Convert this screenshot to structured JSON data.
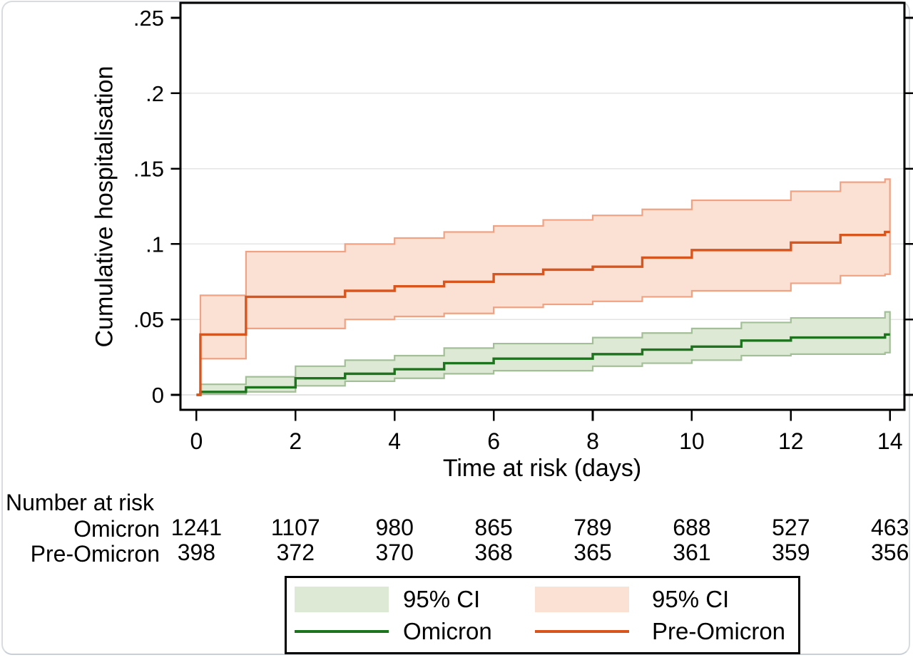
{
  "chart_data": {
    "type": "line",
    "subtype": "kaplan-meier-cumulative-incidence-step-plot",
    "title": "",
    "xlabel": "Time at risk (days)",
    "ylabel": "Cumulative hospitalisation",
    "xlim": [
      0,
      14
    ],
    "ylim": [
      0,
      0.25
    ],
    "grid": "horizontal-only",
    "x_ticks": {
      "values": [
        0,
        2,
        4,
        6,
        8,
        10,
        12,
        14
      ],
      "labels": [
        "0",
        "2",
        "4",
        "6",
        "8",
        "10",
        "12",
        "14"
      ]
    },
    "y_ticks": {
      "values": [
        0,
        0.05,
        0.1,
        0.15,
        0.2,
        0.25
      ],
      "labels": [
        "0",
        ".05",
        ".1",
        ".15",
        ".2",
        ".25"
      ]
    },
    "gridlines_y": [
      0,
      0.05,
      0.1,
      0.15,
      0.2
    ],
    "steps_format": "[day, estimate, ci_lower, ci_upper]",
    "series": [
      {
        "name": "Omicron",
        "line_color": "#1e741e",
        "ci_fill": "#dde9d4",
        "ci_edge": "#a2bf97",
        "end_x": 14,
        "steps": [
          [
            0,
            0,
            0,
            0
          ],
          [
            0.08,
            0.002,
            0.0005,
            0.007
          ],
          [
            1,
            0.005,
            0.002,
            0.012
          ],
          [
            2,
            0.011,
            0.006,
            0.019
          ],
          [
            3,
            0.014,
            0.009,
            0.023
          ],
          [
            4,
            0.017,
            0.011,
            0.026
          ],
          [
            5,
            0.021,
            0.014,
            0.031
          ],
          [
            6,
            0.024,
            0.016,
            0.034
          ],
          [
            8,
            0.027,
            0.019,
            0.038
          ],
          [
            9,
            0.03,
            0.021,
            0.041
          ],
          [
            10,
            0.032,
            0.023,
            0.044
          ],
          [
            11,
            0.036,
            0.026,
            0.048
          ],
          [
            12,
            0.038,
            0.027,
            0.051
          ],
          [
            13.9,
            0.04,
            0.028,
            0.055
          ]
        ]
      },
      {
        "name": "Pre-Omicron",
        "line_color": "#d8551e",
        "ci_fill": "#fbe0d4",
        "ci_edge": "#f0a283",
        "end_x": 14,
        "steps": [
          [
            0,
            0,
            0,
            0
          ],
          [
            0.08,
            0.04,
            0.024,
            0.066
          ],
          [
            1,
            0.065,
            0.044,
            0.095
          ],
          [
            3,
            0.069,
            0.05,
            0.1
          ],
          [
            4,
            0.072,
            0.052,
            0.104
          ],
          [
            5,
            0.075,
            0.054,
            0.108
          ],
          [
            6,
            0.08,
            0.058,
            0.112
          ],
          [
            7,
            0.083,
            0.06,
            0.116
          ],
          [
            8,
            0.085,
            0.062,
            0.119
          ],
          [
            9,
            0.091,
            0.065,
            0.123
          ],
          [
            10,
            0.096,
            0.069,
            0.129
          ],
          [
            12,
            0.101,
            0.074,
            0.135
          ],
          [
            13,
            0.106,
            0.079,
            0.141
          ],
          [
            13.9,
            0.108,
            0.08,
            0.143
          ]
        ]
      }
    ],
    "number_at_risk": {
      "header": "Number at risk",
      "time_points": [
        0,
        2,
        4,
        6,
        8,
        10,
        12,
        14
      ],
      "rows": [
        {
          "label": "Omicron",
          "counts": [
            "1241",
            "1107",
            "980",
            "865",
            "789",
            "688",
            "527",
            "463"
          ]
        },
        {
          "label": "Pre-Omicron",
          "counts": [
            "398",
            "372",
            "370",
            "368",
            "365",
            "361",
            "359",
            "356"
          ]
        }
      ]
    },
    "legend": {
      "position": "bottom-center",
      "items": [
        {
          "type": "fill",
          "color": "#dde9d4",
          "label": "95% CI"
        },
        {
          "type": "fill",
          "color": "#fbe0d4",
          "label": "95% CI"
        },
        {
          "type": "line",
          "color": "#1e741e",
          "label": "Omicron"
        },
        {
          "type": "line",
          "color": "#d8551e",
          "label": "Pre-Omicron"
        }
      ]
    }
  },
  "colors": {
    "frame": "#000000",
    "gridline": "#e4e4e4",
    "tick": "#000000",
    "text": "#000000",
    "card_border": "#d9dcdf"
  }
}
